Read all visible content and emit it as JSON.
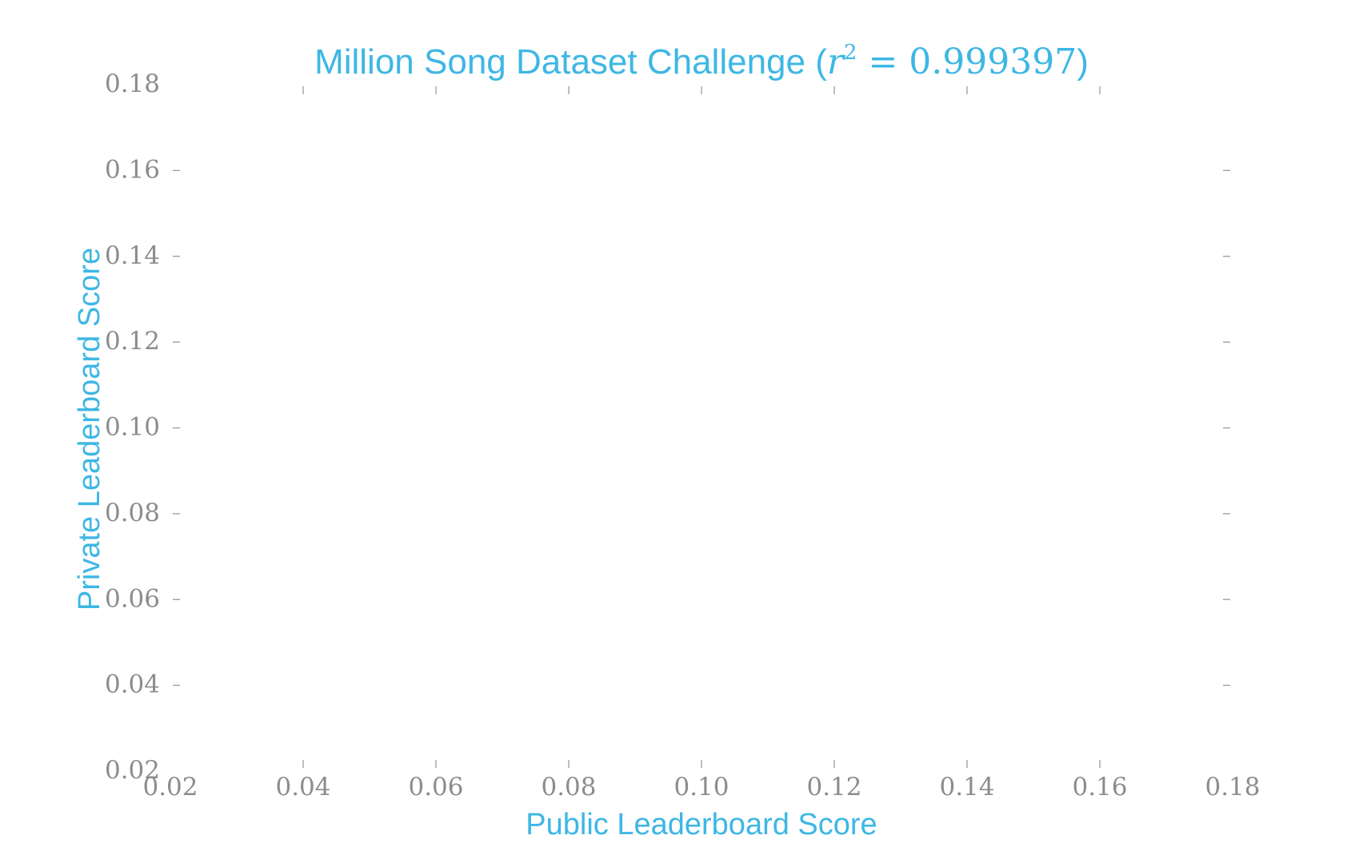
{
  "colors": {
    "accent": "#3db7e4",
    "tick_label": "#8c8c8c",
    "tick_mark": "#9a9a9a",
    "background": "#ffffff"
  },
  "chart_data": {
    "type": "scatter",
    "title": "Million Song Dataset Challenge (r² = 0.999397)",
    "title_parts": {
      "text": "Million Song Dataset Challenge ",
      "open_paren": "(",
      "r": "r",
      "sup": "2",
      "eq": " = 0.999397",
      "close_paren": ")"
    },
    "xlabel": "Public Leaderboard Score",
    "ylabel": "Private Leaderboard Score",
    "xlim": [
      0.02,
      0.18
    ],
    "ylim": [
      0.02,
      0.18
    ],
    "x_ticks": [
      "0.02",
      "0.04",
      "0.06",
      "0.08",
      "0.10",
      "0.12",
      "0.14",
      "0.16",
      "0.18"
    ],
    "y_ticks": [
      "0.02",
      "0.04",
      "0.06",
      "0.08",
      "0.10",
      "0.12",
      "0.14",
      "0.16",
      "0.18"
    ],
    "points": [],
    "grid": false,
    "legend": "none",
    "frame": false
  }
}
